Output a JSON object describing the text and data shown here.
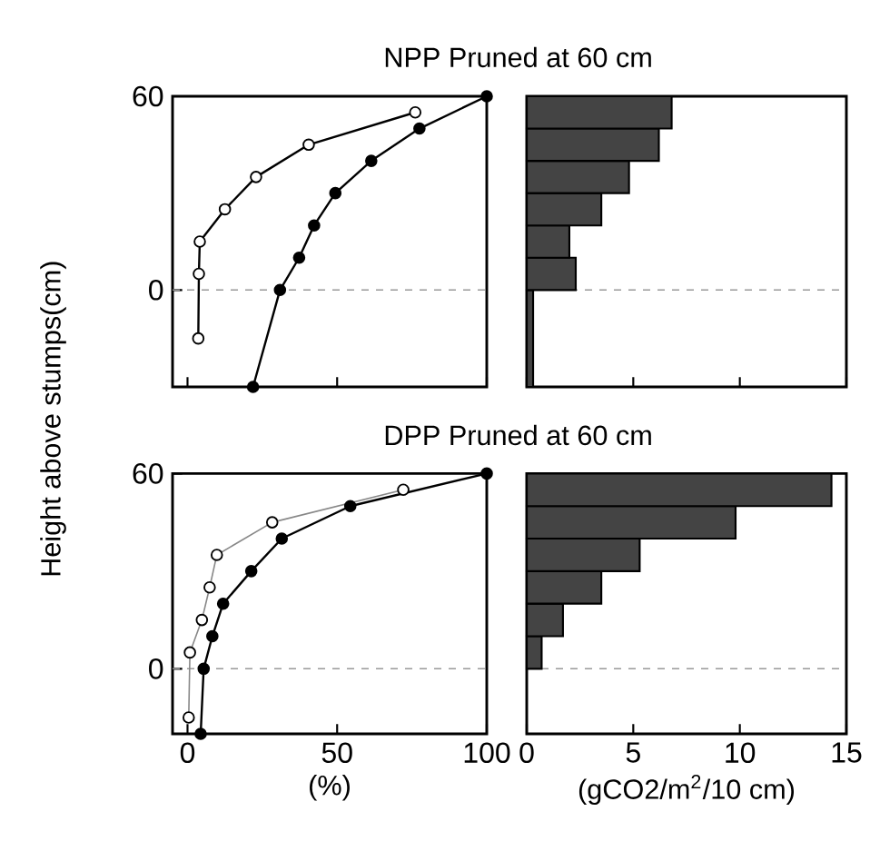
{
  "chart_data": [
    {
      "type": "line",
      "title": "NPP  Pruned at 60 cm",
      "ylabel": "Height above stumps(cm)",
      "xlim": [
        -5,
        100
      ],
      "ylim": [
        -30,
        60
      ],
      "xticks": [
        0,
        50,
        100
      ],
      "yticks": [
        0,
        60
      ],
      "tick_labels": "y",
      "marker": "circle",
      "line_style": "solid",
      "ref_lines": [
        {
          "axis": "y",
          "value": 0,
          "color": "#999999",
          "line_style": "dashed"
        }
      ],
      "series": [
        {
          "color": "#000000",
          "x": [
            3.6,
            3.8,
            4.1,
            12.5,
            22.9,
            40.5,
            76.1
          ],
          "values": [
            -15,
            5,
            15,
            25,
            35,
            45,
            55
          ]
        },
        {
          "color": "#000000",
          "x": [
            21.9,
            30.9,
            37.3,
            42.3,
            49.4,
            61.4,
            77.5,
            100
          ],
          "values": [
            -30,
            0,
            10,
            20,
            30,
            40,
            50,
            60
          ]
        }
      ]
    },
    {
      "type": "histogram",
      "orientation": "horizontal",
      "color": "#444444",
      "xlim": [
        0,
        15
      ],
      "ylim": [
        -30,
        60
      ],
      "xticks": [
        0,
        5,
        10,
        15
      ],
      "tick_labels": false,
      "ref_lines": [
        {
          "axis": "y",
          "value": 0,
          "color": "#999999",
          "line_style": "dashed"
        }
      ],
      "bins": [
        -30,
        0,
        10,
        20,
        30,
        40,
        50,
        60
      ],
      "values": [
        0.3,
        2.3,
        2.0,
        3.5,
        4.8,
        6.2,
        6.8
      ]
    },
    {
      "type": "line",
      "title": "DPP Pruned at 60 cm",
      "xlabel": "(%)",
      "xlim": [
        -5,
        100
      ],
      "ylim": [
        -20,
        60
      ],
      "xticks": [
        0,
        50,
        100
      ],
      "yticks": [
        0,
        60
      ],
      "marker": "circle",
      "line_style": "solid",
      "ref_lines": [
        {
          "axis": "y",
          "value": 0,
          "color": "#999999",
          "line_style": "dashed"
        }
      ],
      "series": [
        {
          "color": "#888888",
          "x": [
            0.4,
            0.8,
            4.8,
            7.4,
            9.8,
            28.3,
            72.1
          ],
          "values": [
            -15,
            5,
            15,
            25,
            35,
            45,
            55
          ]
        },
        {
          "color": "#000000",
          "x": [
            4.4,
            5.4,
            8.3,
            11.9,
            21.3,
            31.5,
            54.4,
            100
          ],
          "values": [
            -20,
            0,
            10,
            20,
            30,
            40,
            50,
            60
          ]
        }
      ]
    },
    {
      "type": "histogram",
      "orientation": "horizontal",
      "color": "#444444",
      "xlabel": "(gCO2/m$^{2}$/10 cm)",
      "xlim": [
        0,
        15
      ],
      "ylim": [
        -20,
        60
      ],
      "xticks": [
        0,
        5,
        10,
        15
      ],
      "tick_labels": "x",
      "ref_lines": [
        {
          "axis": "y",
          "value": 0,
          "color": "#999999",
          "line_style": "dashed"
        }
      ],
      "bins": [
        0,
        10,
        20,
        30,
        40,
        50,
        60
      ],
      "values": [
        0.7,
        1.7,
        3.5,
        5.3,
        9.8,
        14.3
      ]
    }
  ]
}
